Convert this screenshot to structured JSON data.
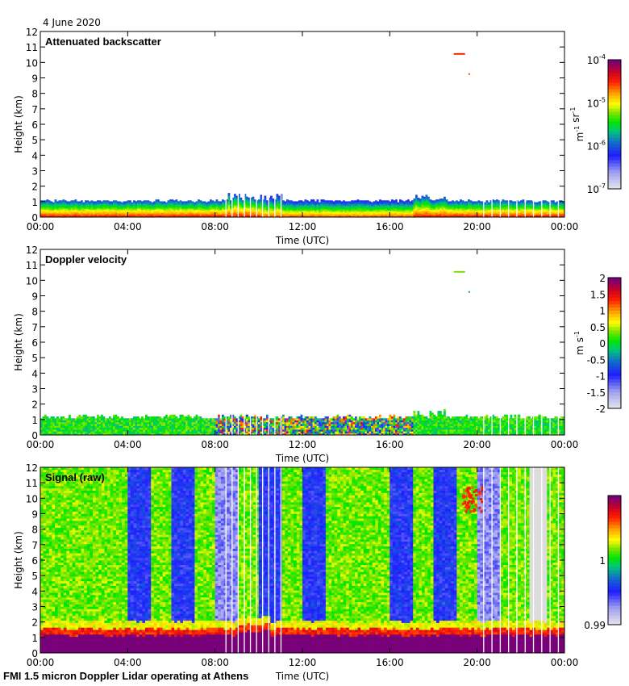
{
  "header": {
    "date": "4 June 2020"
  },
  "footer": {
    "caption": "FMI 1.5 micron Doppler Lidar operating at Athens"
  },
  "chart_data": [
    {
      "type": "heatmap",
      "title": "Attenuated backscatter",
      "xlabel": "Time (UTC)",
      "ylabel": "Height (km)",
      "xticks": [
        "00:00",
        "04:00",
        "08:00",
        "12:00",
        "16:00",
        "20:00",
        "00:00"
      ],
      "xlim_hours": [
        0,
        24
      ],
      "ylim": [
        0,
        12
      ],
      "yticks": [
        0,
        1,
        2,
        3,
        4,
        5,
        6,
        7,
        8,
        9,
        10,
        11,
        12
      ],
      "colorbar": {
        "label": "m-1 sr-1",
        "scale": "log",
        "range": [
          1e-07,
          0.0001
        ],
        "ticks": [
          "10-7",
          "10-6",
          "10-5",
          "10-4"
        ]
      },
      "features": {
        "boundary_layer_top_km": 1.0,
        "high_layer_top_km": 1.5,
        "strong_surface_layer_km": 0.4,
        "isolated_returns": [
          {
            "time_h": 19.3,
            "height_km": 10.6
          },
          {
            "time_h": 19.6,
            "height_km": 9.3
          }
        ]
      }
    },
    {
      "type": "heatmap",
      "title": "Doppler velocity",
      "xlabel": "Time (UTC)",
      "ylabel": "Height (km)",
      "xticks": [
        "00:00",
        "04:00",
        "08:00",
        "12:00",
        "16:00",
        "20:00",
        "00:00"
      ],
      "xlim_hours": [
        0,
        24
      ],
      "ylim": [
        0,
        12
      ],
      "yticks": [
        0,
        1,
        2,
        3,
        4,
        5,
        6,
        7,
        8,
        9,
        10,
        11,
        12
      ],
      "colorbar": {
        "label": "m s-1",
        "scale": "linear",
        "range": [
          -2,
          2
        ],
        "ticks": [
          "-2",
          "-1.5",
          "-1",
          "-0.5",
          "0",
          "0.5",
          "1",
          "1.5",
          "2"
        ]
      },
      "features": {
        "boundary_layer_top_km": 1.1,
        "turbulent_period_hours": [
          8,
          17
        ],
        "isolated_returns": [
          {
            "time_h": 19.3,
            "height_km": 10.6
          },
          {
            "time_h": 19.6,
            "height_km": 9.3
          }
        ]
      }
    },
    {
      "type": "heatmap",
      "title": "Signal (raw)",
      "xlabel": "Time (UTC)",
      "ylabel": "Height (km)",
      "xticks": [
        "00:00",
        "04:00",
        "08:00",
        "12:00",
        "16:00",
        "20:00",
        "00:00"
      ],
      "xlim_hours": [
        0,
        24
      ],
      "ylim": [
        0,
        12
      ],
      "yticks": [
        0,
        1,
        2,
        3,
        4,
        5,
        6,
        7,
        8,
        9,
        10,
        11,
        12
      ],
      "colorbar": {
        "label": "",
        "scale": "linear",
        "range": [
          0.99,
          1.01
        ],
        "ticks": [
          "0.99",
          "1"
        ]
      },
      "features": {
        "saturated_layer_top_km": 1.0,
        "blue_periods_hours": [
          [
            4.0,
            5.0
          ],
          [
            6.0,
            7.0
          ],
          [
            8.0,
            9.0
          ],
          [
            10.0,
            11.0
          ],
          [
            12.0,
            13.0
          ],
          [
            16.0,
            17.0
          ],
          [
            18.0,
            19.0
          ]
        ],
        "light_periods_hours": [
          [
            8.0,
            9.0
          ],
          [
            20.0,
            21.0
          ],
          [
            22.0,
            23.0
          ]
        ]
      }
    }
  ]
}
